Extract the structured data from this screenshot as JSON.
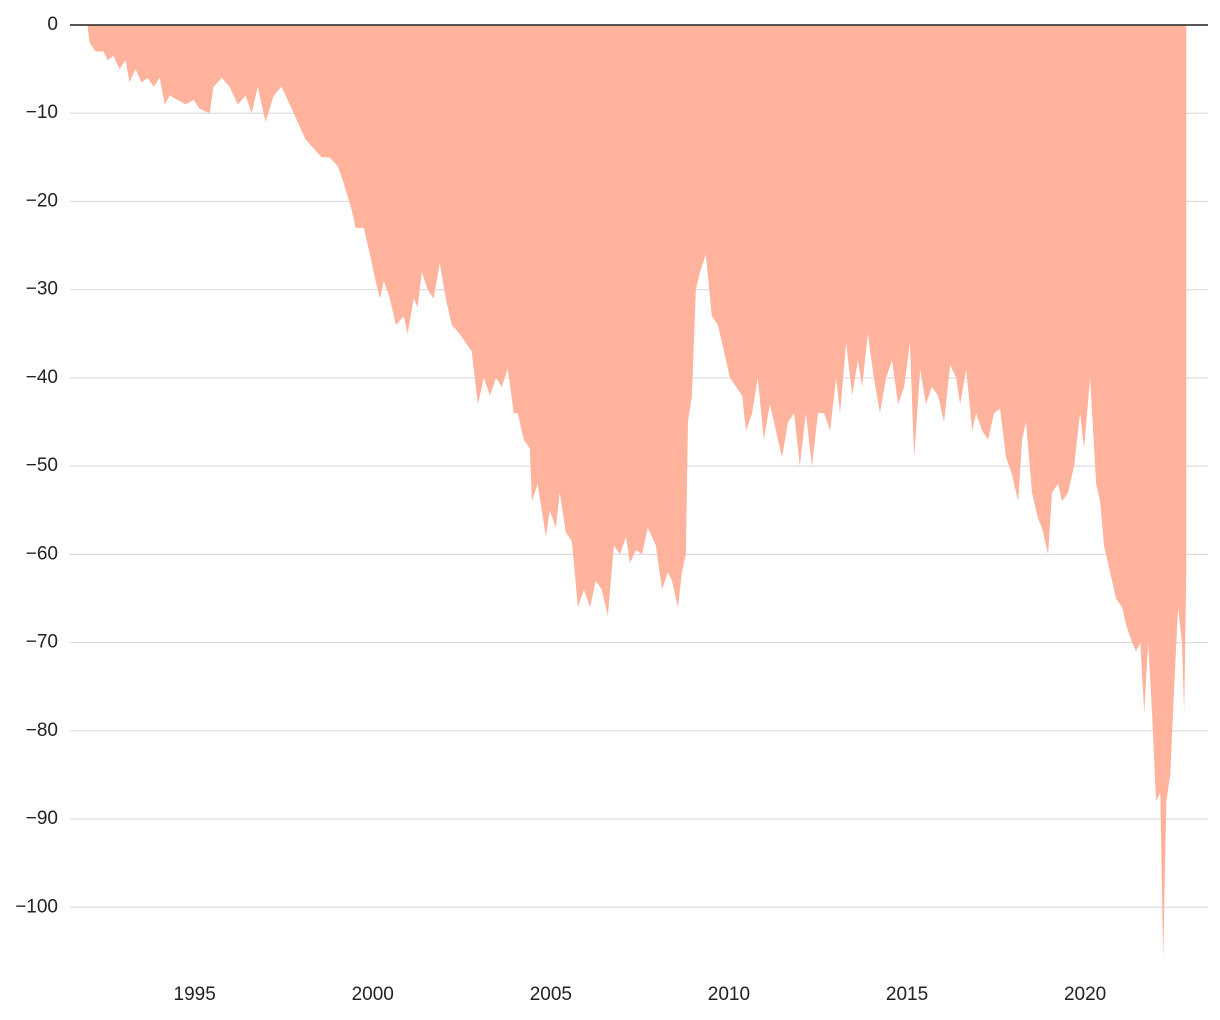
{
  "chart_data": {
    "type": "area",
    "color": "#ffae97",
    "grid": true,
    "xlim": [
      1991.5,
      2023.45
    ],
    "xticks": [
      1995,
      2000,
      2005,
      2010,
      2015,
      2020
    ],
    "ylim": [
      -107,
      0
    ],
    "yticks": [
      0,
      {
        "value": -10,
        "label": "−10"
      },
      {
        "value": -20,
        "label": "−20"
      },
      {
        "value": -30,
        "label": "−30"
      },
      {
        "value": -40,
        "label": "−40"
      },
      {
        "value": -50,
        "label": "−50"
      },
      {
        "value": -60,
        "label": "−60"
      },
      {
        "value": -70,
        "label": "−70"
      },
      {
        "value": -80,
        "label": "−80"
      },
      {
        "value": -90,
        "label": "−90"
      },
      {
        "value": -100,
        "label": "−100"
      }
    ],
    "x": [
      1991.99,
      1992.05,
      1992.22,
      1992.44,
      1992.56,
      1992.72,
      1992.89,
      1993.06,
      1993.17,
      1993.34,
      1993.51,
      1993.68,
      1993.85,
      1994.02,
      1994.16,
      1994.3,
      1994.52,
      1994.75,
      1994.97,
      1995.14,
      1995.42,
      1995.53,
      1995.76,
      1995.98,
      1996.21,
      1996.43,
      1996.6,
      1996.77,
      1996.99,
      1997.22,
      1997.44,
      1997.67,
      1997.89,
      1998.12,
      1998.34,
      1998.57,
      1998.79,
      1999.02,
      1999.19,
      1999.41,
      1999.52,
      1999.75,
      1999.92,
      2000.08,
      2000.2,
      2000.31,
      2000.48,
      2000.65,
      2000.87,
      2000.98,
      2001.15,
      2001.26,
      2001.38,
      2001.54,
      2001.71,
      2001.88,
      2002.05,
      2002.22,
      2002.44,
      2002.61,
      2002.78,
      2002.95,
      2003.12,
      2003.29,
      2003.46,
      2003.62,
      2003.79,
      2003.96,
      2004.07,
      2004.24,
      2004.41,
      2004.47,
      2004.63,
      2004.86,
      2004.97,
      2005.14,
      2005.25,
      2005.42,
      2005.59,
      2005.76,
      2005.93,
      2006.1,
      2006.26,
      2006.43,
      2006.6,
      2006.77,
      2006.94,
      2007.11,
      2007.22,
      2007.39,
      2007.56,
      2007.72,
      2007.84,
      2007.95,
      2008.12,
      2008.29,
      2008.4,
      2008.57,
      2008.68,
      2008.79,
      2008.85,
      2008.96,
      2009.07,
      2009.19,
      2009.35,
      2009.52,
      2009.69,
      2009.86,
      2010.03,
      2010.2,
      2010.37,
      2010.48,
      2010.65,
      2010.81,
      2010.98,
      2011.15,
      2011.32,
      2011.49,
      2011.66,
      2011.83,
      2011.99,
      2012.16,
      2012.33,
      2012.5,
      2012.67,
      2012.84,
      2013.01,
      2013.12,
      2013.29,
      2013.46,
      2013.62,
      2013.74,
      2013.9,
      2014.07,
      2014.24,
      2014.41,
      2014.58,
      2014.75,
      2014.92,
      2015.08,
      2015.2,
      2015.37,
      2015.53,
      2015.7,
      2015.87,
      2016.04,
      2016.21,
      2016.38,
      2016.49,
      2016.66,
      2016.83,
      2016.94,
      2017.11,
      2017.28,
      2017.44,
      2017.61,
      2017.78,
      2017.95,
      2018.12,
      2018.23,
      2018.34,
      2018.51,
      2018.68,
      2018.79,
      2018.96,
      2019.07,
      2019.24,
      2019.35,
      2019.52,
      2019.69,
      2019.86,
      2019.97,
      2020.14,
      2020.31,
      2020.42,
      2020.53,
      2020.7,
      2020.87,
      2021.04,
      2021.15,
      2021.32,
      2021.43,
      2021.55,
      2021.66,
      2021.77,
      2021.88,
      2021.99,
      2022.11,
      2022.19,
      2022.28,
      2022.39,
      2022.5,
      2022.61,
      2022.72,
      2022.78,
      2022.84
    ],
    "values": [
      0,
      -2,
      -3,
      -3,
      -4,
      -3.5,
      -5,
      -4,
      -6.5,
      -5,
      -6.5,
      -6,
      -7,
      -6,
      -9,
      -8,
      -8.5,
      -9,
      -8.5,
      -9.5,
      -10,
      -7,
      -6,
      -7,
      -9,
      -8,
      -10,
      -7,
      -11,
      -8,
      -7,
      -9,
      -11,
      -13,
      -14,
      -15,
      -15,
      -16,
      -18,
      -21,
      -23,
      -23,
      -26,
      -29,
      -31,
      -29,
      -31,
      -34,
      -33,
      -35,
      -31,
      -32,
      -28,
      -30,
      -31,
      -27,
      -31,
      -34,
      -35,
      -36,
      -37,
      -43,
      -40,
      -42,
      -40,
      -41,
      -39,
      -44,
      -44,
      -47,
      -48,
      -54,
      -52,
      -58,
      -55,
      -57,
      -53,
      -57.5,
      -58.5,
      -66,
      -64,
      -66,
      -63,
      -64,
      -67,
      -59,
      -60,
      -58,
      -61,
      -59.5,
      -60,
      -57,
      -58,
      -59,
      -64,
      -62,
      -63,
      -66,
      -62,
      -60,
      -45,
      -42,
      -30,
      -28,
      -26,
      -33,
      -34,
      -37,
      -40,
      -41,
      -42,
      -46,
      -44,
      -40,
      -47,
      -43,
      -46,
      -49,
      -45,
      -44,
      -50,
      -44,
      -50,
      -44,
      -44,
      -46,
      -40,
      -44,
      -36,
      -42,
      -38,
      -41,
      -35,
      -40,
      -44,
      -40,
      -38,
      -43,
      -41,
      -36,
      -49,
      -39,
      -43,
      -41,
      -42,
      -45,
      -38.5,
      -40,
      -43,
      -39,
      -46,
      -44,
      -46,
      -47,
      -44,
      -43.5,
      -49,
      -51,
      -54,
      -47,
      -45,
      -53,
      -56,
      -57,
      -60,
      -53,
      -52,
      -54,
      -53,
      -50,
      -44,
      -48,
      -40,
      -52,
      -54,
      -59,
      -62,
      -65,
      -66,
      -68,
      -70,
      -71,
      -70,
      -78,
      -70,
      -78,
      -88,
      -87,
      -106,
      -88,
      -85,
      -75,
      -66,
      -70,
      -78,
      -62
    ]
  }
}
